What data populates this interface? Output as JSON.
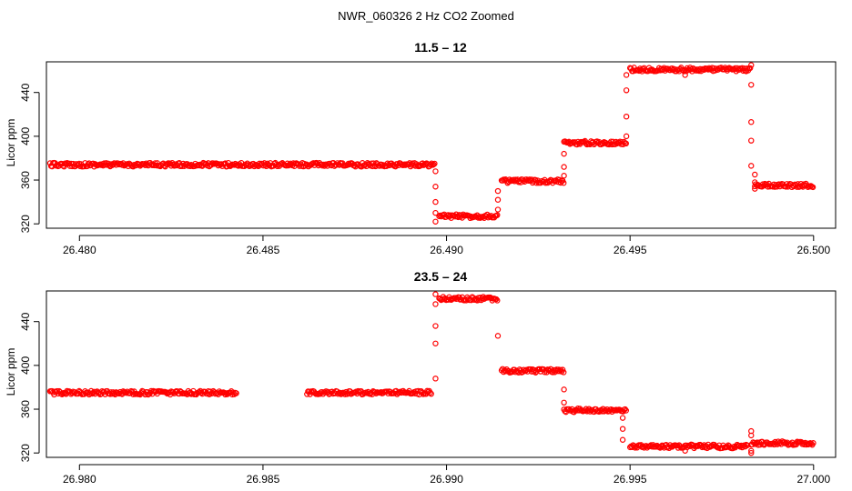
{
  "figure": {
    "title": "NWR_060326  2 Hz CO2 Zoomed"
  },
  "chart_data": [
    {
      "type": "scatter",
      "title": "11.5 – 12",
      "xlabel": "",
      "ylabel": "Licor ppm",
      "xlim": [
        26.4791,
        26.5006
      ],
      "ylim": [
        316,
        468
      ],
      "xticks": [
        26.48,
        26.485,
        26.49,
        26.495,
        26.5
      ],
      "xtick_labels": [
        "26.480",
        "26.485",
        "26.490",
        "26.495",
        "26.500"
      ],
      "yticks": [
        320,
        360,
        400,
        440
      ],
      "ytick_labels": [
        "320",
        "360",
        "400",
        "440"
      ],
      "marker": "open-circle",
      "color": "#ff0000",
      "segments": [
        {
          "x0": 26.4792,
          "x1": 26.4897,
          "y": 374
        },
        {
          "x0": 26.4898,
          "x1": 26.4914,
          "y": 327
        },
        {
          "x0": 26.4915,
          "x1": 26.4932,
          "y": 359
        },
        {
          "x0": 26.4932,
          "x1": 26.4949,
          "y": 394
        },
        {
          "x0": 26.495,
          "x1": 26.4983,
          "y": 461
        },
        {
          "x0": 26.4984,
          "x1": 26.5,
          "y": 355
        }
      ],
      "points": [
        {
          "x": 26.4897,
          "y": 368
        },
        {
          "x": 26.4897,
          "y": 354
        },
        {
          "x": 26.4897,
          "y": 340
        },
        {
          "x": 26.4897,
          "y": 330
        },
        {
          "x": 26.4897,
          "y": 322
        },
        {
          "x": 26.4914,
          "y": 333
        },
        {
          "x": 26.4914,
          "y": 342
        },
        {
          "x": 26.4914,
          "y": 350
        },
        {
          "x": 26.4932,
          "y": 364
        },
        {
          "x": 26.4932,
          "y": 372
        },
        {
          "x": 26.4932,
          "y": 384
        },
        {
          "x": 26.4949,
          "y": 400
        },
        {
          "x": 26.4949,
          "y": 418
        },
        {
          "x": 26.4949,
          "y": 442
        },
        {
          "x": 26.4949,
          "y": 456
        },
        {
          "x": 26.4965,
          "y": 456
        },
        {
          "x": 26.4983,
          "y": 465
        },
        {
          "x": 26.4983,
          "y": 447
        },
        {
          "x": 26.4983,
          "y": 413
        },
        {
          "x": 26.4983,
          "y": 396
        },
        {
          "x": 26.4983,
          "y": 373
        },
        {
          "x": 26.4984,
          "y": 365
        },
        {
          "x": 26.4984,
          "y": 358
        },
        {
          "x": 26.4984,
          "y": 352
        }
      ]
    },
    {
      "type": "scatter",
      "title": "23.5 – 24",
      "xlabel": "",
      "ylabel": "Licor ppm",
      "xlim": [
        26.9791,
        27.0006
      ],
      "ylim": [
        316,
        468
      ],
      "xticks": [
        26.98,
        26.985,
        26.99,
        26.995,
        27.0
      ],
      "xtick_labels": [
        "26.980",
        "26.985",
        "26.990",
        "26.995",
        "27.000"
      ],
      "yticks": [
        320,
        360,
        400,
        440
      ],
      "ytick_labels": [
        "320",
        "360",
        "400",
        "440"
      ],
      "marker": "open-circle",
      "color": "#ff0000",
      "segments": [
        {
          "x0": 26.9792,
          "x1": 26.9843,
          "y": 375
        },
        {
          "x0": 26.9862,
          "x1": 26.9896,
          "y": 375
        },
        {
          "x0": 26.9898,
          "x1": 26.9914,
          "y": 461
        },
        {
          "x0": 26.9915,
          "x1": 26.9932,
          "y": 395
        },
        {
          "x0": 26.9932,
          "x1": 26.9949,
          "y": 359
        },
        {
          "x0": 26.995,
          "x1": 26.9982,
          "y": 326
        },
        {
          "x0": 26.9983,
          "x1": 27.0,
          "y": 329
        }
      ],
      "points": [
        {
          "x": 26.9897,
          "y": 388
        },
        {
          "x": 26.9897,
          "y": 420
        },
        {
          "x": 26.9897,
          "y": 436
        },
        {
          "x": 26.9897,
          "y": 456
        },
        {
          "x": 26.9897,
          "y": 465
        },
        {
          "x": 26.9914,
          "y": 427
        },
        {
          "x": 26.9932,
          "y": 378
        },
        {
          "x": 26.9932,
          "y": 366
        },
        {
          "x": 26.9948,
          "y": 352
        },
        {
          "x": 26.9948,
          "y": 342
        },
        {
          "x": 26.9948,
          "y": 332
        },
        {
          "x": 26.9965,
          "y": 322
        },
        {
          "x": 26.9983,
          "y": 340
        },
        {
          "x": 26.9983,
          "y": 336
        },
        {
          "x": 26.9983,
          "y": 320
        },
        {
          "x": 26.9983,
          "y": 322
        }
      ]
    }
  ]
}
